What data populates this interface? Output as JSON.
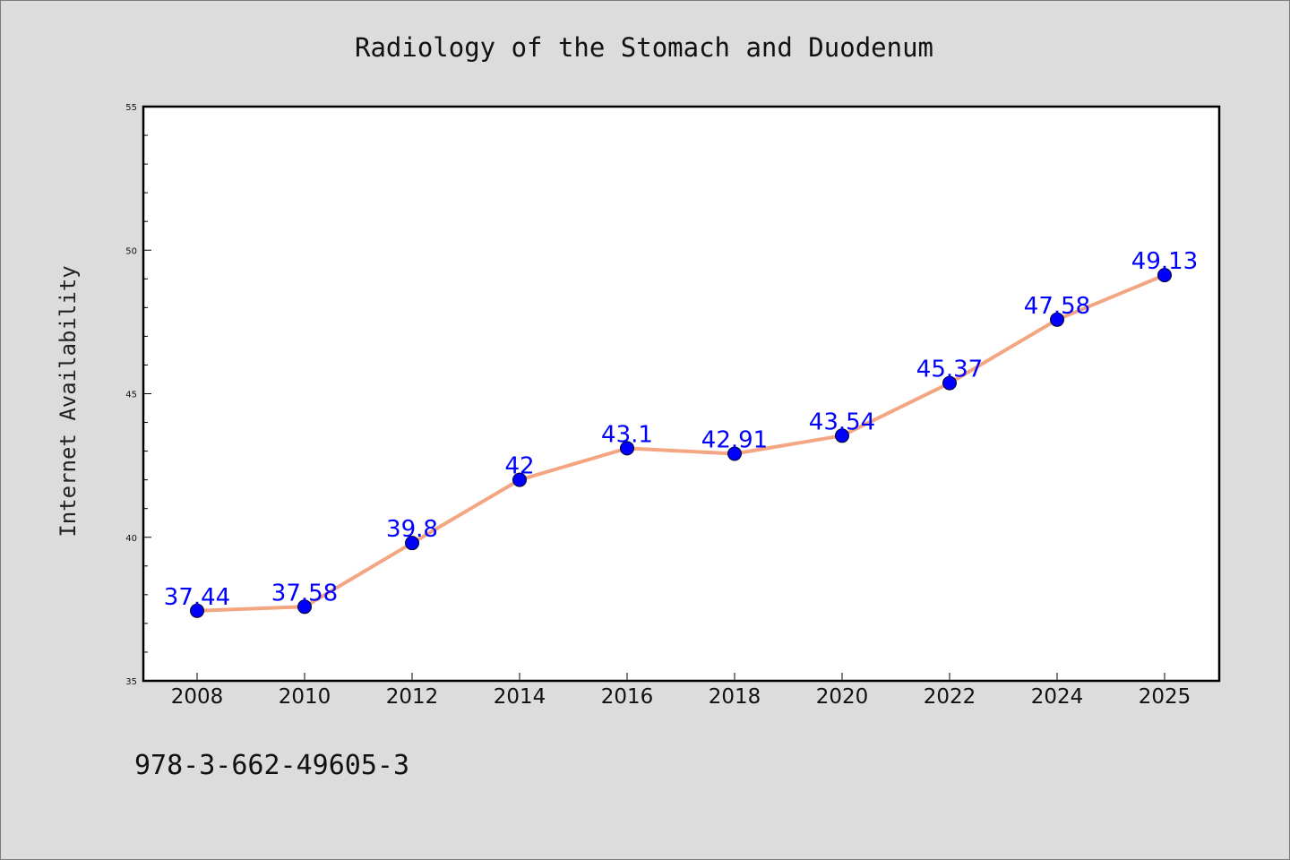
{
  "chart_data": {
    "type": "line",
    "title": "Radiology of the Stomach and Duodenum",
    "xlabel": "",
    "ylabel": "Internet Availability",
    "categories": [
      "2008",
      "2010",
      "2012",
      "2014",
      "2016",
      "2018",
      "2020",
      "2022",
      "2024",
      "2025"
    ],
    "series": [
      {
        "values": [
          37.44,
          37.58,
          39.8,
          42,
          43.1,
          42.91,
          43.54,
          45.37,
          47.58,
          49.13
        ],
        "labels": [
          "37.44",
          "37.58",
          "39.8",
          "42",
          "43.1",
          "42.91",
          "43.54",
          "45.37",
          "47.58",
          "49.13"
        ]
      }
    ],
    "ylim": [
      35,
      55
    ],
    "yticks": [
      "35",
      "40",
      "45",
      "50",
      "55"
    ],
    "grid": false,
    "legend": "none"
  },
  "footer": {
    "isbn": "978-3-662-49605-3"
  },
  "colors": {
    "background": "#dcdcdc",
    "plot_area": "#ffffff",
    "line": "#f4a582",
    "marker": "#0000ff",
    "data_label": "#0000ff"
  }
}
